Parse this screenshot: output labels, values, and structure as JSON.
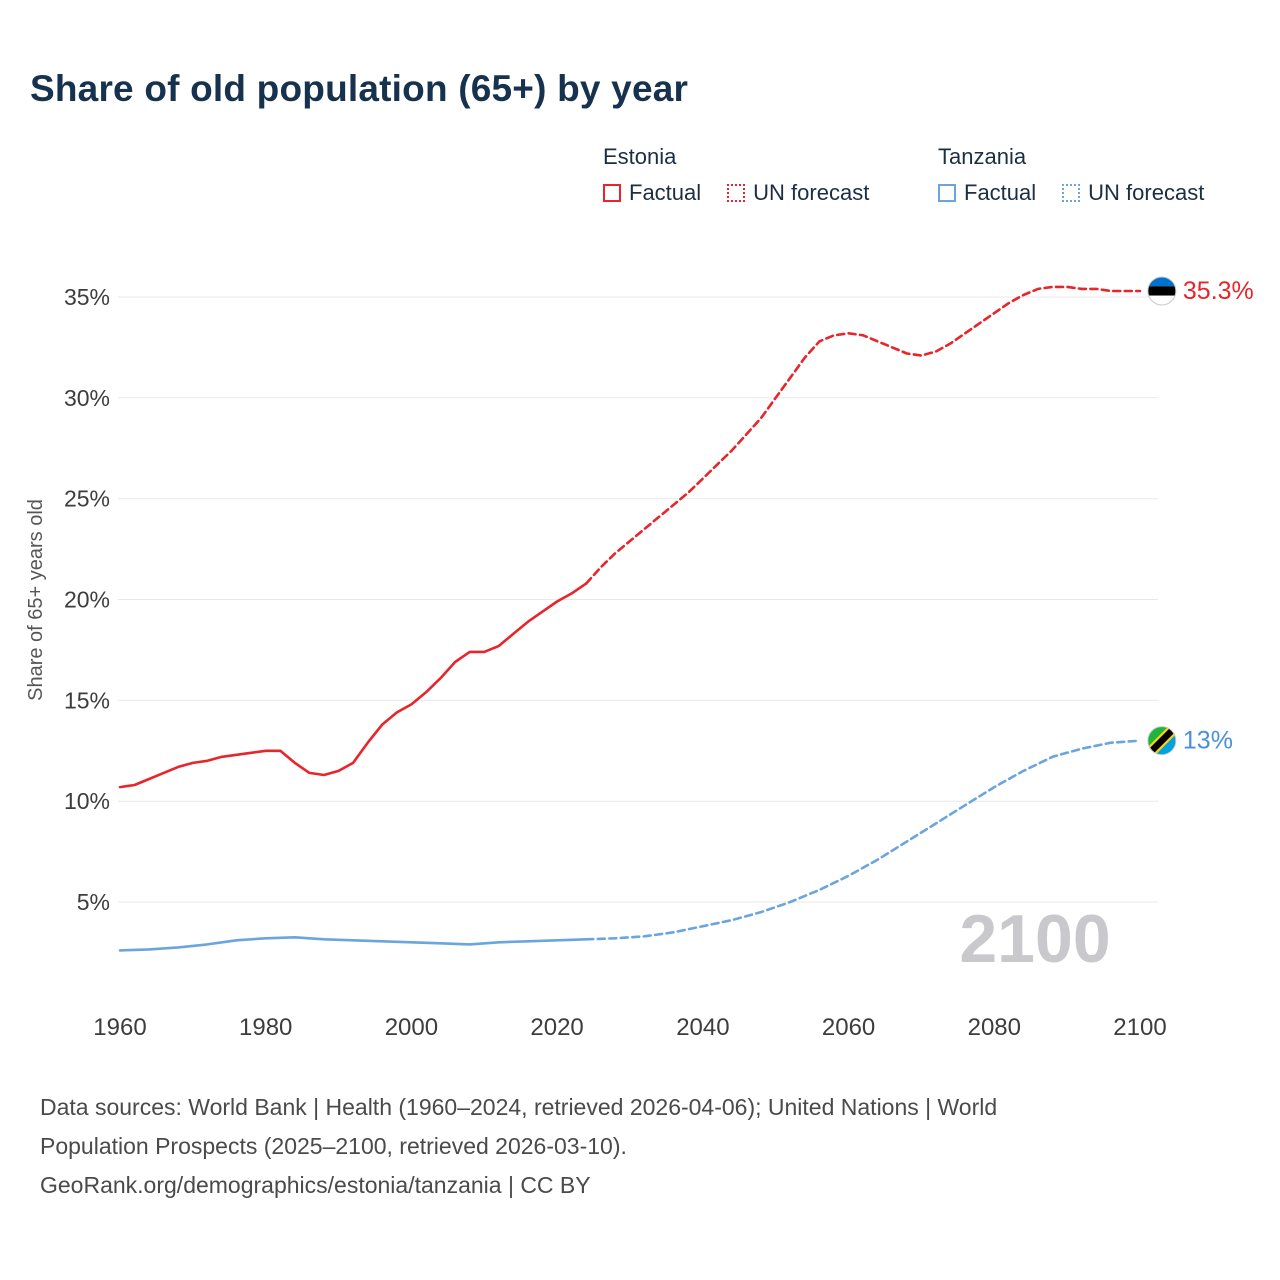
{
  "title": "Share of old population (65+) by year",
  "watermark": "2100",
  "legend": {
    "groups": [
      {
        "name": "Estonia",
        "color": "#e8252a",
        "items": [
          {
            "label": "Factual",
            "style": "solid"
          },
          {
            "label": "UN forecast",
            "style": "dashed"
          }
        ]
      },
      {
        "name": "Tanzania",
        "color": "#6aa5dd",
        "items": [
          {
            "label": "Factual",
            "style": "solid"
          },
          {
            "label": "UN forecast",
            "style": "dashed"
          }
        ]
      }
    ]
  },
  "footer_lines": [
    "Data sources: World Bank | Health (1960–2024, retrieved 2026-04-06); United Nations | World",
    "Population Prospects (2025–2100, retrieved 2026-03-10).",
    "GeoRank.org/demographics/estonia/tanzania | CC BY"
  ],
  "chart_data": {
    "type": "line",
    "title": "Share of old population (65+) by year",
    "xlabel": "",
    "ylabel": "Share of 65+ years old",
    "xlim": [
      1955,
      2115
    ],
    "ylim": [
      0,
      38
    ],
    "xticks": [
      1960,
      1980,
      2000,
      2020,
      2040,
      2060,
      2080,
      2100
    ],
    "yticks": [
      5,
      10,
      15,
      20,
      25,
      30,
      35
    ],
    "grid": "horizontal",
    "legend_position": "top-right",
    "series": [
      {
        "name": "Estonia Factual",
        "color": "#e8252a",
        "style": "solid",
        "x": [
          1960,
          1962,
          1964,
          1966,
          1968,
          1970,
          1972,
          1974,
          1976,
          1978,
          1980,
          1982,
          1984,
          1986,
          1988,
          1990,
          1992,
          1994,
          1996,
          1998,
          2000,
          2002,
          2004,
          2006,
          2008,
          2010,
          2012,
          2014,
          2016,
          2018,
          2020,
          2022,
          2024
        ],
        "y": [
          10.7,
          10.8,
          11.1,
          11.4,
          11.7,
          11.9,
          12.0,
          12.2,
          12.3,
          12.4,
          12.5,
          12.5,
          11.9,
          11.4,
          11.3,
          11.5,
          11.9,
          12.9,
          13.8,
          14.4,
          14.8,
          15.4,
          16.1,
          16.9,
          17.4,
          17.4,
          17.7,
          18.3,
          18.9,
          19.4,
          19.9,
          20.3,
          20.8
        ]
      },
      {
        "name": "Estonia UN forecast",
        "color": "#e8252a",
        "style": "dashed",
        "x": [
          2024,
          2026,
          2028,
          2030,
          2032,
          2034,
          2036,
          2038,
          2040,
          2042,
          2044,
          2046,
          2048,
          2050,
          2052,
          2054,
          2056,
          2058,
          2060,
          2062,
          2064,
          2066,
          2068,
          2070,
          2072,
          2074,
          2076,
          2078,
          2080,
          2082,
          2084,
          2086,
          2088,
          2090,
          2092,
          2094,
          2096,
          2098,
          2100
        ],
        "y": [
          20.8,
          21.6,
          22.3,
          22.9,
          23.5,
          24.1,
          24.7,
          25.3,
          26.0,
          26.7,
          27.4,
          28.2,
          29.0,
          30.0,
          31.0,
          32.0,
          32.8,
          33.1,
          33.2,
          33.1,
          32.8,
          32.5,
          32.2,
          32.1,
          32.3,
          32.7,
          33.2,
          33.7,
          34.2,
          34.7,
          35.1,
          35.4,
          35.5,
          35.5,
          35.4,
          35.4,
          35.3,
          35.3,
          35.3
        ]
      },
      {
        "name": "Tanzania Factual",
        "color": "#6aa5dd",
        "style": "solid",
        "x": [
          1960,
          1964,
          1968,
          1972,
          1976,
          1980,
          1984,
          1988,
          1992,
          1996,
          2000,
          2004,
          2008,
          2012,
          2016,
          2020,
          2024
        ],
        "y": [
          2.6,
          2.65,
          2.75,
          2.9,
          3.1,
          3.2,
          3.25,
          3.15,
          3.1,
          3.05,
          3.0,
          2.95,
          2.9,
          3.0,
          3.05,
          3.1,
          3.15
        ]
      },
      {
        "name": "Tanzania UN forecast",
        "color": "#6aa5dd",
        "style": "dashed",
        "x": [
          2024,
          2028,
          2032,
          2036,
          2040,
          2044,
          2048,
          2052,
          2056,
          2060,
          2064,
          2068,
          2072,
          2076,
          2080,
          2084,
          2088,
          2092,
          2096,
          2100
        ],
        "y": [
          3.15,
          3.2,
          3.3,
          3.5,
          3.8,
          4.1,
          4.5,
          5.0,
          5.6,
          6.3,
          7.1,
          8.0,
          8.9,
          9.8,
          10.7,
          11.5,
          12.2,
          12.6,
          12.9,
          13.0
        ]
      }
    ],
    "end_markers": [
      {
        "flag": "estonia",
        "x": 2103,
        "y": 35.3,
        "label": "35.3%",
        "label_color": "#e8252a"
      },
      {
        "flag": "tanzania",
        "x": 2103,
        "y": 13,
        "label": "13%",
        "label_color": "#4a90d9"
      }
    ]
  }
}
